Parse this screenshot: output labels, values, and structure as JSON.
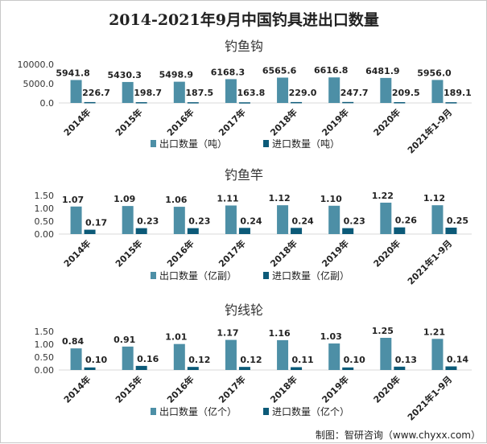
{
  "title": "2014-2021年9月中国钓具进出口数量",
  "source": "制图：智研咨询（www.chyxx.com）",
  "colors": {
    "export": "#4d8fa6",
    "import": "#0c5a78"
  },
  "chart_data": [
    {
      "type": "bar",
      "title": "钓鱼钩",
      "categories": [
        "2014年",
        "2015年",
        "2016年",
        "2017年",
        "2018年",
        "2019年",
        "2020年",
        "2021年1-9月"
      ],
      "ylim": [
        0,
        10000
      ],
      "yticks": [
        "0.0",
        "5000.0",
        "10000.0"
      ],
      "series": [
        {
          "name": "出口数量（吨）",
          "values": [
            5941.8,
            5430.3,
            5498.9,
            6168.3,
            6565.6,
            6616.8,
            6481.9,
            5956.0
          ],
          "labels": [
            "5941.8",
            "5430.3",
            "5498.9",
            "6168.3",
            "6565.6",
            "6616.8",
            "6481.9",
            "5956.0"
          ]
        },
        {
          "name": "进口数量（吨）",
          "values": [
            226.7,
            198.7,
            187.5,
            163.8,
            229.0,
            247.7,
            209.5,
            189.1
          ],
          "labels": [
            "226.7",
            "198.7",
            "187.5",
            "163.8",
            "229.0",
            "247.7",
            "209.5",
            "189.1"
          ]
        }
      ]
    },
    {
      "type": "bar",
      "title": "钓鱼竿",
      "categories": [
        "2014年",
        "2015年",
        "2016年",
        "2017年",
        "2018年",
        "2019年",
        "2020年",
        "2021年1-9月"
      ],
      "ylim": [
        0,
        1.5
      ],
      "yticks": [
        "0.00",
        "0.50",
        "1.00",
        "1.50"
      ],
      "series": [
        {
          "name": "出口数量（亿副）",
          "values": [
            1.07,
            1.09,
            1.06,
            1.11,
            1.12,
            1.1,
            1.22,
            1.12
          ],
          "labels": [
            "1.07",
            "1.09",
            "1.06",
            "1.11",
            "1.12",
            "1.10",
            "1.22",
            "1.12"
          ]
        },
        {
          "name": "进口数量（亿副）",
          "values": [
            0.17,
            0.23,
            0.23,
            0.24,
            0.24,
            0.23,
            0.26,
            0.25
          ],
          "labels": [
            "0.17",
            "0.23",
            "0.23",
            "0.24",
            "0.24",
            "0.23",
            "0.26",
            "0.25"
          ]
        }
      ]
    },
    {
      "type": "bar",
      "title": "钓线轮",
      "categories": [
        "2014年",
        "2015年",
        "2016年",
        "2017年",
        "2018年",
        "2019年",
        "2020年",
        "2021年1-9月"
      ],
      "ylim": [
        0,
        1.5
      ],
      "yticks": [
        "0.00",
        "0.50",
        "1.00",
        "1.50"
      ],
      "series": [
        {
          "name": "出口数量（亿个）",
          "values": [
            0.84,
            0.91,
            1.01,
            1.17,
            1.16,
            1.03,
            1.25,
            1.21
          ],
          "labels": [
            "0.84",
            "0.91",
            "1.01",
            "1.17",
            "1.16",
            "1.03",
            "1.25",
            "1.21"
          ]
        },
        {
          "name": "进口数量（亿个）",
          "values": [
            0.1,
            0.16,
            0.12,
            0.12,
            0.11,
            0.1,
            0.13,
            0.14
          ],
          "labels": [
            "0.10",
            "0.16",
            "0.12",
            "0.12",
            "0.11",
            "0.10",
            "0.13",
            "0.14"
          ]
        }
      ]
    }
  ]
}
